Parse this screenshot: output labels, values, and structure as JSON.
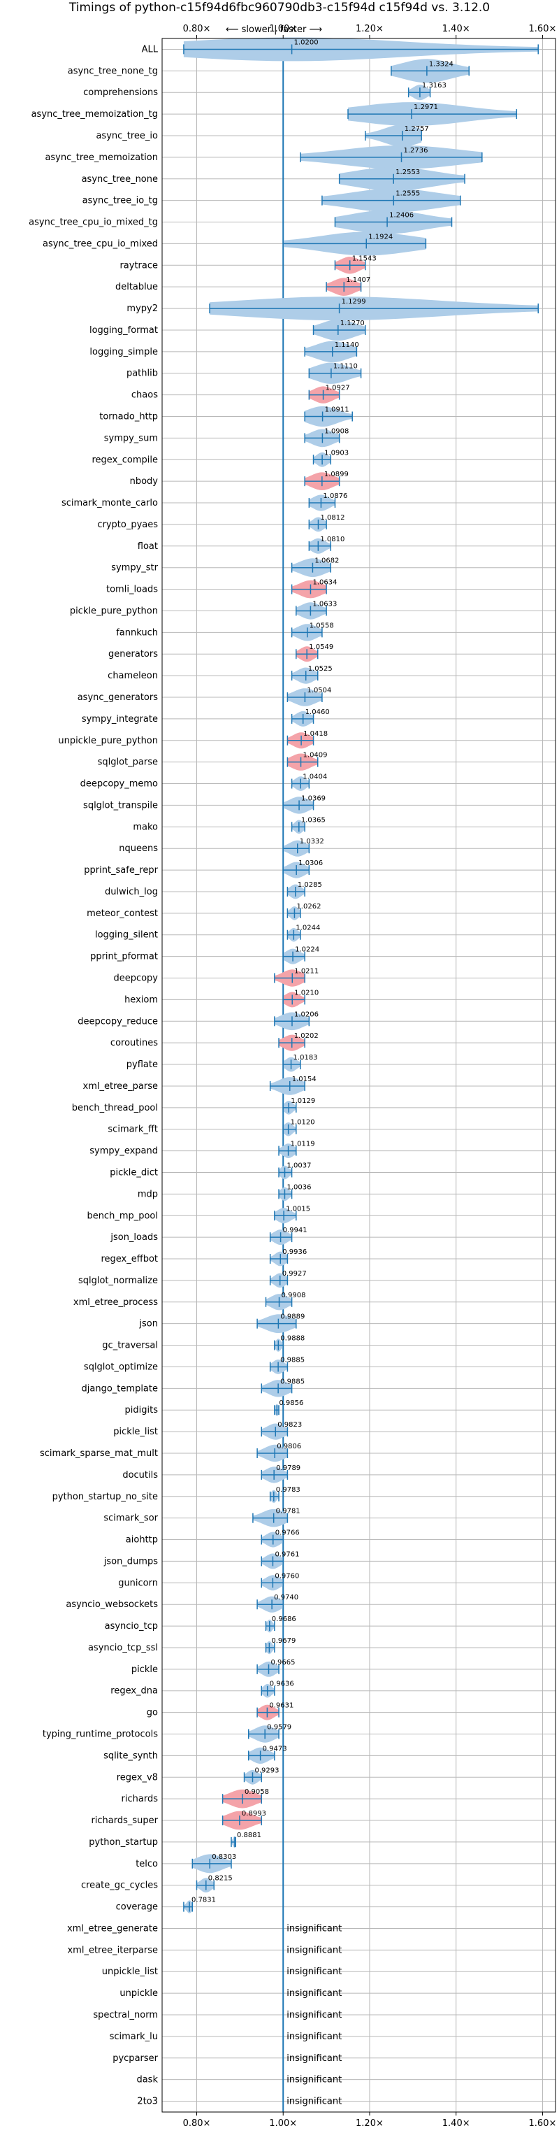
{
  "chart_data": {
    "type": "violin",
    "title": "Timings of python-c15f94d6fbc960790db3-c15f94d c15f94d vs. 3.12.0",
    "direction_note": "⟵ slower | faster ⟶",
    "xlim": [
      0.72,
      1.63
    ],
    "x_ticks": [
      0.8,
      1.0,
      1.2,
      1.4,
      1.6
    ],
    "x_tick_labels": [
      "0.80×",
      "1.00×",
      "1.20×",
      "1.40×",
      "1.60×"
    ],
    "reference_line": 1.0,
    "insignificant_label": "insignificant",
    "benchmarks": [
      {
        "name": "ALL",
        "value": 1.02,
        "lo": 0.77,
        "hi": 1.59,
        "sig": true,
        "color": "blue"
      },
      {
        "name": "async_tree_none_tg",
        "value": 1.3324,
        "lo": 1.25,
        "hi": 1.43,
        "sig": true,
        "color": "blue"
      },
      {
        "name": "comprehensions",
        "value": 1.3163,
        "lo": 1.29,
        "hi": 1.34,
        "sig": true,
        "color": "blue"
      },
      {
        "name": "async_tree_memoization_tg",
        "value": 1.2971,
        "lo": 1.15,
        "hi": 1.54,
        "sig": true,
        "color": "blue"
      },
      {
        "name": "async_tree_io",
        "value": 1.2757,
        "lo": 1.19,
        "hi": 1.32,
        "sig": true,
        "color": "blue"
      },
      {
        "name": "async_tree_memoization",
        "value": 1.2736,
        "lo": 1.04,
        "hi": 1.46,
        "sig": true,
        "color": "blue"
      },
      {
        "name": "async_tree_none",
        "value": 1.2553,
        "lo": 1.13,
        "hi": 1.42,
        "sig": true,
        "color": "blue"
      },
      {
        "name": "async_tree_io_tg",
        "value": 1.2555,
        "lo": 1.09,
        "hi": 1.41,
        "sig": true,
        "color": "blue"
      },
      {
        "name": "async_tree_cpu_io_mixed_tg",
        "value": 1.2406,
        "lo": 1.12,
        "hi": 1.39,
        "sig": true,
        "color": "blue"
      },
      {
        "name": "async_tree_cpu_io_mixed",
        "value": 1.1924,
        "lo": 1.0,
        "hi": 1.33,
        "sig": true,
        "color": "blue"
      },
      {
        "name": "raytrace",
        "value": 1.1543,
        "lo": 1.12,
        "hi": 1.19,
        "sig": true,
        "color": "red"
      },
      {
        "name": "deltablue",
        "value": 1.1407,
        "lo": 1.1,
        "hi": 1.18,
        "sig": true,
        "color": "red"
      },
      {
        "name": "mypy2",
        "value": 1.1299,
        "lo": 0.83,
        "hi": 1.59,
        "sig": true,
        "color": "blue"
      },
      {
        "name": "logging_format",
        "value": 1.127,
        "lo": 1.07,
        "hi": 1.19,
        "sig": true,
        "color": "blue"
      },
      {
        "name": "logging_simple",
        "value": 1.114,
        "lo": 1.05,
        "hi": 1.17,
        "sig": true,
        "color": "blue"
      },
      {
        "name": "pathlib",
        "value": 1.111,
        "lo": 1.06,
        "hi": 1.18,
        "sig": true,
        "color": "blue"
      },
      {
        "name": "chaos",
        "value": 1.0927,
        "lo": 1.06,
        "hi": 1.13,
        "sig": true,
        "color": "red"
      },
      {
        "name": "tornado_http",
        "value": 1.0911,
        "lo": 1.05,
        "hi": 1.16,
        "sig": true,
        "color": "blue"
      },
      {
        "name": "sympy_sum",
        "value": 1.0908,
        "lo": 1.05,
        "hi": 1.13,
        "sig": true,
        "color": "blue"
      },
      {
        "name": "regex_compile",
        "value": 1.0903,
        "lo": 1.07,
        "hi": 1.11,
        "sig": true,
        "color": "blue"
      },
      {
        "name": "nbody",
        "value": 1.0899,
        "lo": 1.05,
        "hi": 1.13,
        "sig": true,
        "color": "red"
      },
      {
        "name": "scimark_monte_carlo",
        "value": 1.0876,
        "lo": 1.06,
        "hi": 1.12,
        "sig": true,
        "color": "blue"
      },
      {
        "name": "crypto_pyaes",
        "value": 1.0812,
        "lo": 1.06,
        "hi": 1.1,
        "sig": true,
        "color": "blue"
      },
      {
        "name": "float",
        "value": 1.081,
        "lo": 1.06,
        "hi": 1.11,
        "sig": true,
        "color": "blue"
      },
      {
        "name": "sympy_str",
        "value": 1.0682,
        "lo": 1.02,
        "hi": 1.11,
        "sig": true,
        "color": "blue"
      },
      {
        "name": "tomli_loads",
        "value": 1.0634,
        "lo": 1.02,
        "hi": 1.1,
        "sig": true,
        "color": "red"
      },
      {
        "name": "pickle_pure_python",
        "value": 1.0633,
        "lo": 1.03,
        "hi": 1.1,
        "sig": true,
        "color": "blue"
      },
      {
        "name": "fannkuch",
        "value": 1.0558,
        "lo": 1.02,
        "hi": 1.09,
        "sig": true,
        "color": "blue"
      },
      {
        "name": "generators",
        "value": 1.0549,
        "lo": 1.03,
        "hi": 1.08,
        "sig": true,
        "color": "red"
      },
      {
        "name": "chameleon",
        "value": 1.0525,
        "lo": 1.02,
        "hi": 1.08,
        "sig": true,
        "color": "blue"
      },
      {
        "name": "async_generators",
        "value": 1.0504,
        "lo": 1.01,
        "hi": 1.09,
        "sig": true,
        "color": "blue"
      },
      {
        "name": "sympy_integrate",
        "value": 1.046,
        "lo": 1.02,
        "hi": 1.07,
        "sig": true,
        "color": "blue"
      },
      {
        "name": "unpickle_pure_python",
        "value": 1.0418,
        "lo": 1.01,
        "hi": 1.07,
        "sig": true,
        "color": "red"
      },
      {
        "name": "sqlglot_parse",
        "value": 1.0409,
        "lo": 1.01,
        "hi": 1.08,
        "sig": true,
        "color": "red"
      },
      {
        "name": "deepcopy_memo",
        "value": 1.0404,
        "lo": 1.02,
        "hi": 1.06,
        "sig": true,
        "color": "blue"
      },
      {
        "name": "sqlglot_transpile",
        "value": 1.0369,
        "lo": 1.0,
        "hi": 1.07,
        "sig": true,
        "color": "blue"
      },
      {
        "name": "mako",
        "value": 1.0365,
        "lo": 1.02,
        "hi": 1.05,
        "sig": true,
        "color": "blue"
      },
      {
        "name": "nqueens",
        "value": 1.0332,
        "lo": 1.0,
        "hi": 1.06,
        "sig": true,
        "color": "blue"
      },
      {
        "name": "pprint_safe_repr",
        "value": 1.0306,
        "lo": 1.0,
        "hi": 1.06,
        "sig": true,
        "color": "blue"
      },
      {
        "name": "dulwich_log",
        "value": 1.0285,
        "lo": 1.01,
        "hi": 1.05,
        "sig": true,
        "color": "blue"
      },
      {
        "name": "meteor_contest",
        "value": 1.0262,
        "lo": 1.01,
        "hi": 1.04,
        "sig": true,
        "color": "blue"
      },
      {
        "name": "logging_silent",
        "value": 1.0244,
        "lo": 1.01,
        "hi": 1.04,
        "sig": true,
        "color": "blue"
      },
      {
        "name": "pprint_pformat",
        "value": 1.0224,
        "lo": 1.0,
        "hi": 1.05,
        "sig": true,
        "color": "blue"
      },
      {
        "name": "deepcopy",
        "value": 1.0211,
        "lo": 0.98,
        "hi": 1.05,
        "sig": true,
        "color": "red"
      },
      {
        "name": "hexiom",
        "value": 1.021,
        "lo": 1.0,
        "hi": 1.05,
        "sig": true,
        "color": "red"
      },
      {
        "name": "deepcopy_reduce",
        "value": 1.0206,
        "lo": 0.98,
        "hi": 1.06,
        "sig": true,
        "color": "blue"
      },
      {
        "name": "coroutines",
        "value": 1.0202,
        "lo": 0.99,
        "hi": 1.05,
        "sig": true,
        "color": "red"
      },
      {
        "name": "pyflate",
        "value": 1.0183,
        "lo": 1.0,
        "hi": 1.04,
        "sig": true,
        "color": "blue"
      },
      {
        "name": "xml_etree_parse",
        "value": 1.0154,
        "lo": 0.97,
        "hi": 1.05,
        "sig": true,
        "color": "blue"
      },
      {
        "name": "bench_thread_pool",
        "value": 1.0129,
        "lo": 1.0,
        "hi": 1.03,
        "sig": true,
        "color": "blue"
      },
      {
        "name": "scimark_fft",
        "value": 1.012,
        "lo": 1.0,
        "hi": 1.03,
        "sig": true,
        "color": "blue"
      },
      {
        "name": "sympy_expand",
        "value": 1.0119,
        "lo": 0.99,
        "hi": 1.03,
        "sig": true,
        "color": "blue"
      },
      {
        "name": "pickle_dict",
        "value": 1.0037,
        "lo": 0.99,
        "hi": 1.02,
        "sig": true,
        "color": "blue"
      },
      {
        "name": "mdp",
        "value": 1.0036,
        "lo": 0.99,
        "hi": 1.02,
        "sig": true,
        "color": "blue"
      },
      {
        "name": "bench_mp_pool",
        "value": 1.0015,
        "lo": 0.98,
        "hi": 1.03,
        "sig": true,
        "color": "blue"
      },
      {
        "name": "json_loads",
        "value": 0.9941,
        "lo": 0.97,
        "hi": 1.02,
        "sig": true,
        "color": "blue"
      },
      {
        "name": "regex_effbot",
        "value": 0.9936,
        "lo": 0.97,
        "hi": 1.01,
        "sig": true,
        "color": "blue"
      },
      {
        "name": "sqlglot_normalize",
        "value": 0.9927,
        "lo": 0.97,
        "hi": 1.01,
        "sig": true,
        "color": "blue"
      },
      {
        "name": "xml_etree_process",
        "value": 0.9908,
        "lo": 0.96,
        "hi": 1.02,
        "sig": true,
        "color": "blue"
      },
      {
        "name": "json",
        "value": 0.9889,
        "lo": 0.94,
        "hi": 1.03,
        "sig": true,
        "color": "blue"
      },
      {
        "name": "gc_traversal",
        "value": 0.9888,
        "lo": 0.98,
        "hi": 1.0,
        "sig": true,
        "color": "blue"
      },
      {
        "name": "sqlglot_optimize",
        "value": 0.9885,
        "lo": 0.97,
        "hi": 1.01,
        "sig": true,
        "color": "blue"
      },
      {
        "name": "django_template",
        "value": 0.9885,
        "lo": 0.95,
        "hi": 1.02,
        "sig": true,
        "color": "blue"
      },
      {
        "name": "pidigits",
        "value": 0.9856,
        "lo": 0.98,
        "hi": 0.99,
        "sig": true,
        "color": "blue"
      },
      {
        "name": "pickle_list",
        "value": 0.9823,
        "lo": 0.95,
        "hi": 1.01,
        "sig": true,
        "color": "blue"
      },
      {
        "name": "scimark_sparse_mat_mult",
        "value": 0.9806,
        "lo": 0.94,
        "hi": 1.01,
        "sig": true,
        "color": "blue"
      },
      {
        "name": "docutils",
        "value": 0.9789,
        "lo": 0.95,
        "hi": 1.01,
        "sig": true,
        "color": "blue"
      },
      {
        "name": "python_startup_no_site",
        "value": 0.9783,
        "lo": 0.97,
        "hi": 0.99,
        "sig": true,
        "color": "blue"
      },
      {
        "name": "scimark_sor",
        "value": 0.9781,
        "lo": 0.93,
        "hi": 1.01,
        "sig": true,
        "color": "blue"
      },
      {
        "name": "aiohttp",
        "value": 0.9766,
        "lo": 0.95,
        "hi": 1.0,
        "sig": true,
        "color": "blue"
      },
      {
        "name": "json_dumps",
        "value": 0.9761,
        "lo": 0.95,
        "hi": 1.0,
        "sig": true,
        "color": "blue"
      },
      {
        "name": "gunicorn",
        "value": 0.976,
        "lo": 0.95,
        "hi": 1.0,
        "sig": true,
        "color": "blue"
      },
      {
        "name": "asyncio_websockets",
        "value": 0.974,
        "lo": 0.94,
        "hi": 1.0,
        "sig": true,
        "color": "blue"
      },
      {
        "name": "asyncio_tcp",
        "value": 0.9686,
        "lo": 0.96,
        "hi": 0.98,
        "sig": true,
        "color": "blue"
      },
      {
        "name": "asyncio_tcp_ssl",
        "value": 0.9679,
        "lo": 0.96,
        "hi": 0.98,
        "sig": true,
        "color": "blue"
      },
      {
        "name": "pickle",
        "value": 0.9665,
        "lo": 0.94,
        "hi": 0.99,
        "sig": true,
        "color": "blue"
      },
      {
        "name": "regex_dna",
        "value": 0.9636,
        "lo": 0.95,
        "hi": 0.98,
        "sig": true,
        "color": "blue"
      },
      {
        "name": "go",
        "value": 0.9631,
        "lo": 0.94,
        "hi": 0.99,
        "sig": true,
        "color": "red"
      },
      {
        "name": "typing_runtime_protocols",
        "value": 0.9579,
        "lo": 0.92,
        "hi": 0.99,
        "sig": true,
        "color": "blue"
      },
      {
        "name": "sqlite_synth",
        "value": 0.9473,
        "lo": 0.92,
        "hi": 0.98,
        "sig": true,
        "color": "blue"
      },
      {
        "name": "regex_v8",
        "value": 0.9293,
        "lo": 0.91,
        "hi": 0.95,
        "sig": true,
        "color": "blue"
      },
      {
        "name": "richards",
        "value": 0.9058,
        "lo": 0.86,
        "hi": 0.95,
        "sig": true,
        "color": "red"
      },
      {
        "name": "richards_super",
        "value": 0.8993,
        "lo": 0.86,
        "hi": 0.95,
        "sig": true,
        "color": "red"
      },
      {
        "name": "python_startup",
        "value": 0.8881,
        "lo": 0.88,
        "hi": 0.89,
        "sig": true,
        "color": "blue"
      },
      {
        "name": "telco",
        "value": 0.8303,
        "lo": 0.79,
        "hi": 0.88,
        "sig": true,
        "color": "blue"
      },
      {
        "name": "create_gc_cycles",
        "value": 0.8215,
        "lo": 0.8,
        "hi": 0.84,
        "sig": true,
        "color": "blue"
      },
      {
        "name": "coverage",
        "value": 0.7831,
        "lo": 0.77,
        "hi": 0.79,
        "sig": true,
        "color": "blue"
      },
      {
        "name": "xml_etree_generate",
        "value": null,
        "sig": false
      },
      {
        "name": "xml_etree_iterparse",
        "value": null,
        "sig": false
      },
      {
        "name": "unpickle_list",
        "value": null,
        "sig": false
      },
      {
        "name": "unpickle",
        "value": null,
        "sig": false
      },
      {
        "name": "spectral_norm",
        "value": null,
        "sig": false
      },
      {
        "name": "scimark_lu",
        "value": null,
        "sig": false
      },
      {
        "name": "pycparser",
        "value": null,
        "sig": false
      },
      {
        "name": "dask",
        "value": null,
        "sig": false
      },
      {
        "name": "2to3",
        "value": null,
        "sig": false
      }
    ],
    "colors": {
      "blue_fill": "#aecde8",
      "red_fill": "#f4a3a9",
      "stat_line": "#1f77b4",
      "ref_line": "#1f77b4",
      "grid": "#b8b8b8"
    }
  }
}
